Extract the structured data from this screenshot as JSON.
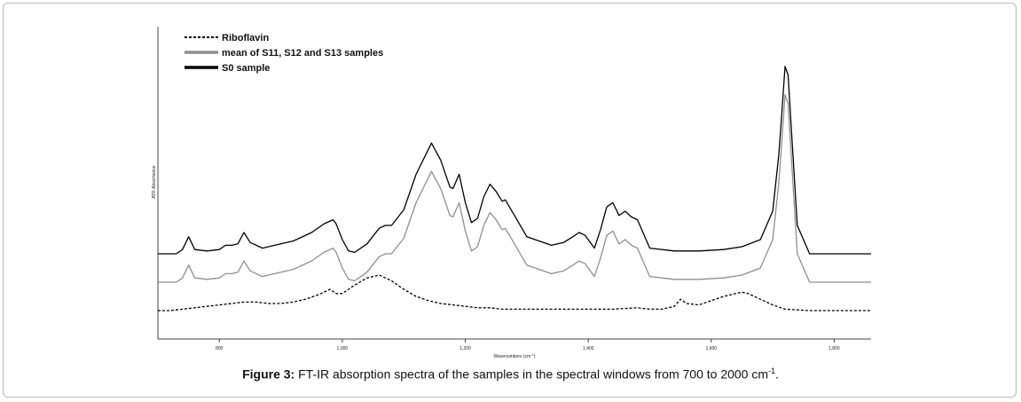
{
  "caption": {
    "label": "Figure 3:",
    "text": "FT-IR absorption spectra of the samples in the spectral windows from 700 to 2000 cm",
    "superscript": "-1",
    "end": "."
  },
  "chart_data": {
    "type": "line",
    "xlabel": "Wavenumbers (cm",
    "xlabel_sup": "-1",
    "xlabel_end": ")",
    "ylabel": "ATR Absorbance",
    "xlim": [
      700,
      1860
    ],
    "ylim": [
      -0.1,
      1.0
    ],
    "x_ticks": [
      800,
      1000,
      1200,
      1400,
      1600,
      1800
    ],
    "x_tick_labels": [
      "800",
      "1,000",
      "1,200",
      "1,400",
      "1,600",
      "1,800"
    ],
    "grid": false,
    "legend_position": "top-left",
    "series": [
      {
        "name": "Riboflavin",
        "color": "#000000",
        "style": "dashed",
        "x": [
          700,
          720,
          740,
          760,
          780,
          800,
          820,
          840,
          860,
          880,
          900,
          920,
          940,
          960,
          980,
          990,
          1000,
          1010,
          1020,
          1040,
          1060,
          1080,
          1100,
          1120,
          1140,
          1160,
          1180,
          1200,
          1220,
          1240,
          1260,
          1280,
          1300,
          1340,
          1380,
          1400,
          1440,
          1480,
          1500,
          1520,
          1540,
          1550,
          1560,
          1580,
          1600,
          1620,
          1640,
          1650,
          1660,
          1680,
          1700,
          1720,
          1760,
          1800,
          1860
        ],
        "values": [
          0.0,
          0.0,
          0.005,
          0.01,
          0.015,
          0.02,
          0.025,
          0.03,
          0.03,
          0.025,
          0.025,
          0.03,
          0.04,
          0.055,
          0.075,
          0.06,
          0.06,
          0.075,
          0.09,
          0.115,
          0.125,
          0.105,
          0.075,
          0.05,
          0.035,
          0.025,
          0.02,
          0.015,
          0.01,
          0.01,
          0.005,
          0.005,
          0.005,
          0.005,
          0.005,
          0.005,
          0.005,
          0.01,
          0.005,
          0.005,
          0.015,
          0.04,
          0.025,
          0.02,
          0.035,
          0.05,
          0.06,
          0.065,
          0.06,
          0.04,
          0.02,
          0.005,
          0.0,
          0.0,
          0.0
        ]
      },
      {
        "name": "mean of S11, S12 and S13 samples",
        "color": "#8f8f8f",
        "style": "solid",
        "x": [
          700,
          730,
          740,
          750,
          760,
          780,
          800,
          810,
          820,
          830,
          840,
          850,
          870,
          900,
          920,
          950,
          970,
          985,
          990,
          1000,
          1010,
          1020,
          1040,
          1060,
          1070,
          1080,
          1100,
          1120,
          1145,
          1160,
          1175,
          1180,
          1190,
          1200,
          1210,
          1220,
          1230,
          1240,
          1250,
          1260,
          1265,
          1280,
          1300,
          1340,
          1360,
          1375,
          1385,
          1395,
          1410,
          1420,
          1430,
          1440,
          1450,
          1460,
          1470,
          1480,
          1500,
          1540,
          1580,
          1620,
          1650,
          1680,
          1700,
          1710,
          1715,
          1720,
          1725,
          1730,
          1740,
          1760,
          1800,
          1860
        ],
        "values": [
          0.1,
          0.1,
          0.115,
          0.16,
          0.115,
          0.11,
          0.115,
          0.13,
          0.13,
          0.135,
          0.175,
          0.14,
          0.12,
          0.135,
          0.145,
          0.175,
          0.205,
          0.22,
          0.205,
          0.15,
          0.11,
          0.105,
          0.135,
          0.19,
          0.2,
          0.2,
          0.255,
          0.38,
          0.49,
          0.43,
          0.335,
          0.33,
          0.38,
          0.28,
          0.21,
          0.225,
          0.3,
          0.345,
          0.32,
          0.285,
          0.29,
          0.235,
          0.16,
          0.13,
          0.14,
          0.16,
          0.175,
          0.165,
          0.12,
          0.185,
          0.265,
          0.28,
          0.235,
          0.25,
          0.23,
          0.22,
          0.12,
          0.11,
          0.11,
          0.115,
          0.125,
          0.15,
          0.25,
          0.45,
          0.6,
          0.76,
          0.73,
          0.55,
          0.2,
          0.1,
          0.1,
          0.1
        ]
      },
      {
        "name": "S0 sample",
        "color": "#000000",
        "style": "solid",
        "x": [
          700,
          730,
          740,
          750,
          760,
          780,
          800,
          810,
          820,
          830,
          840,
          850,
          870,
          900,
          920,
          950,
          970,
          985,
          990,
          1000,
          1010,
          1020,
          1040,
          1060,
          1070,
          1080,
          1100,
          1120,
          1145,
          1160,
          1175,
          1180,
          1190,
          1200,
          1210,
          1220,
          1230,
          1240,
          1250,
          1260,
          1265,
          1280,
          1300,
          1340,
          1360,
          1375,
          1385,
          1395,
          1410,
          1420,
          1430,
          1440,
          1450,
          1460,
          1470,
          1480,
          1500,
          1540,
          1580,
          1620,
          1650,
          1680,
          1700,
          1710,
          1715,
          1720,
          1725,
          1730,
          1740,
          1760,
          1800,
          1860
        ],
        "values": [
          0.2,
          0.2,
          0.215,
          0.26,
          0.215,
          0.21,
          0.215,
          0.23,
          0.23,
          0.235,
          0.275,
          0.24,
          0.22,
          0.235,
          0.245,
          0.275,
          0.305,
          0.32,
          0.305,
          0.25,
          0.21,
          0.205,
          0.235,
          0.29,
          0.3,
          0.3,
          0.355,
          0.48,
          0.59,
          0.53,
          0.435,
          0.43,
          0.48,
          0.38,
          0.31,
          0.325,
          0.4,
          0.445,
          0.42,
          0.385,
          0.39,
          0.335,
          0.26,
          0.23,
          0.24,
          0.26,
          0.275,
          0.265,
          0.22,
          0.285,
          0.365,
          0.38,
          0.335,
          0.35,
          0.33,
          0.32,
          0.22,
          0.21,
          0.21,
          0.215,
          0.225,
          0.25,
          0.35,
          0.55,
          0.7,
          0.86,
          0.83,
          0.65,
          0.3,
          0.2,
          0.2,
          0.2
        ]
      }
    ]
  }
}
